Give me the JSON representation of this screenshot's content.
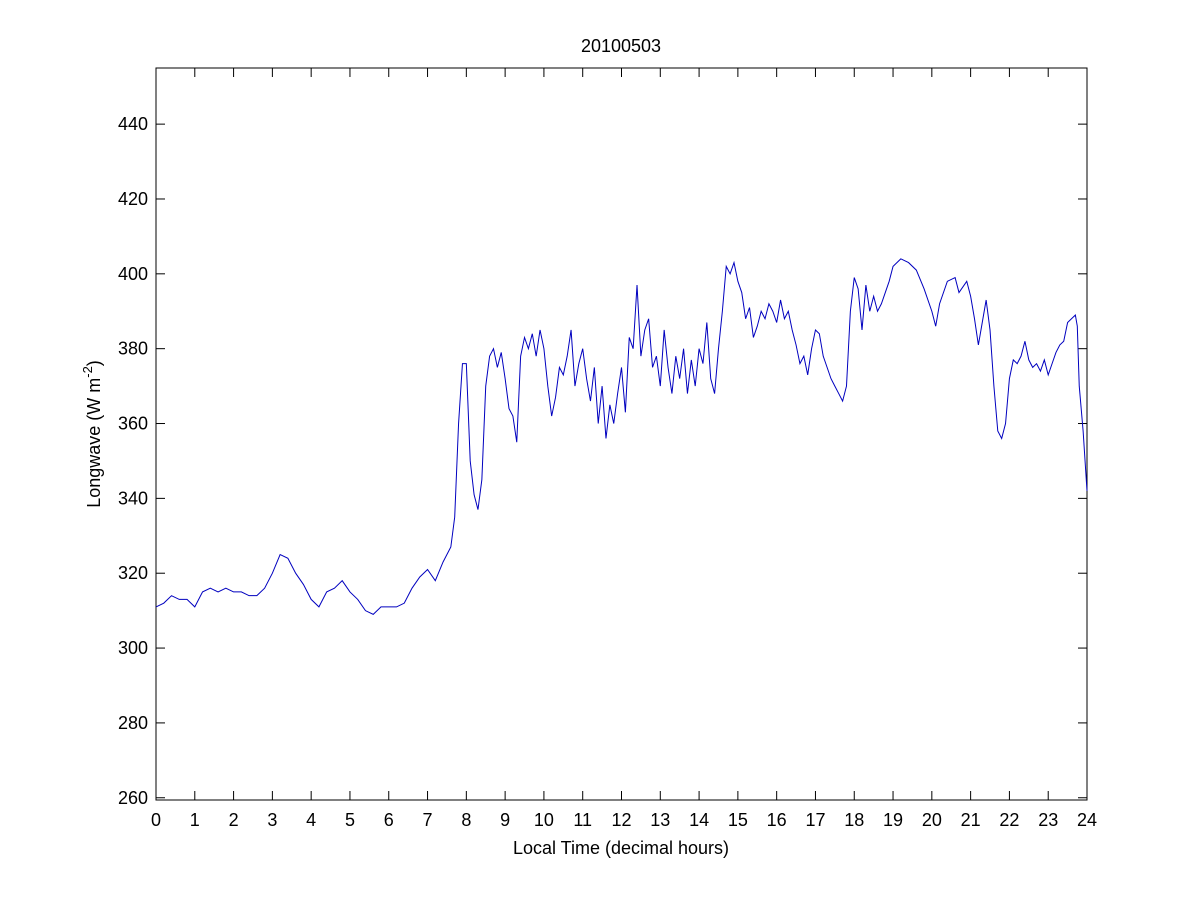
{
  "chart_data": {
    "type": "line",
    "title": "20100503",
    "xlabel": "Local Time (decimal hours)",
    "ylabel": {
      "text": "Longwave (W m",
      "superscript": "-2",
      "suffix": ")"
    },
    "color": "#0000bf",
    "xlim": [
      0,
      24
    ],
    "xticks": [
      0,
      1,
      2,
      3,
      4,
      5,
      6,
      7,
      8,
      9,
      10,
      11,
      12,
      13,
      14,
      15,
      16,
      17,
      18,
      19,
      20,
      21,
      22,
      23,
      24
    ],
    "ylim": [
      259.4,
      455
    ],
    "yticks": [
      260,
      280,
      300,
      320,
      340,
      360,
      380,
      400,
      420,
      440
    ],
    "grid": false,
    "x": [
      0,
      0.2,
      0.4,
      0.6,
      0.8,
      1.0,
      1.2,
      1.4,
      1.6,
      1.8,
      2.0,
      2.2,
      2.4,
      2.6,
      2.8,
      3.0,
      3.2,
      3.4,
      3.6,
      3.8,
      4.0,
      4.2,
      4.4,
      4.6,
      4.8,
      5.0,
      5.2,
      5.4,
      5.6,
      5.8,
      6.0,
      6.2,
      6.4,
      6.6,
      6.8,
      7.0,
      7.2,
      7.4,
      7.6,
      7.7,
      7.8,
      7.9,
      8.0,
      8.1,
      8.2,
      8.3,
      8.4,
      8.5,
      8.6,
      8.7,
      8.8,
      8.9,
      9.0,
      9.1,
      9.2,
      9.3,
      9.4,
      9.5,
      9.6,
      9.7,
      9.8,
      9.9,
      10.0,
      10.1,
      10.2,
      10.3,
      10.4,
      10.5,
      10.6,
      10.7,
      10.8,
      10.9,
      11.0,
      11.1,
      11.2,
      11.3,
      11.4,
      11.5,
      11.6,
      11.7,
      11.8,
      11.9,
      12.0,
      12.1,
      12.2,
      12.3,
      12.4,
      12.5,
      12.6,
      12.7,
      12.8,
      12.9,
      13.0,
      13.1,
      13.2,
      13.3,
      13.4,
      13.5,
      13.6,
      13.7,
      13.8,
      13.9,
      14.0,
      14.1,
      14.2,
      14.3,
      14.4,
      14.5,
      14.6,
      14.7,
      14.8,
      14.9,
      15.0,
      15.1,
      15.2,
      15.3,
      15.4,
      15.5,
      15.6,
      15.7,
      15.8,
      15.9,
      16.0,
      16.1,
      16.2,
      16.3,
      16.4,
      16.5,
      16.6,
      16.7,
      16.8,
      16.9,
      17.0,
      17.1,
      17.2,
      17.3,
      17.4,
      17.5,
      17.6,
      17.7,
      17.8,
      17.9,
      18.0,
      18.1,
      18.2,
      18.3,
      18.4,
      18.5,
      18.6,
      18.7,
      18.8,
      18.9,
      19.0,
      19.2,
      19.4,
      19.6,
      19.8,
      20.0,
      20.1,
      20.2,
      20.4,
      20.6,
      20.7,
      20.9,
      21.0,
      21.1,
      21.2,
      21.3,
      21.4,
      21.5,
      21.6,
      21.7,
      21.8,
      21.9,
      22.0,
      22.1,
      22.2,
      22.3,
      22.4,
      22.5,
      22.6,
      22.7,
      22.8,
      22.9,
      23.0,
      23.1,
      23.2,
      23.3,
      23.4,
      23.5,
      23.6,
      23.7,
      23.75,
      23.8,
      23.9,
      24.0
    ],
    "values": [
      311,
      312,
      314,
      313,
      313,
      311,
      315,
      316,
      315,
      316,
      315,
      315,
      314,
      314,
      316,
      320,
      325,
      324,
      320,
      317,
      313,
      311,
      315,
      316,
      318,
      315,
      313,
      310,
      309,
      311,
      311,
      311,
      312,
      316,
      319,
      321,
      318,
      323,
      327,
      335,
      360,
      376,
      376,
      350,
      341,
      337,
      345,
      370,
      378,
      380,
      375,
      379,
      372,
      364,
      362,
      355,
      378,
      383,
      380,
      384,
      378,
      385,
      380,
      370,
      362,
      367,
      375,
      373,
      378,
      385,
      370,
      376,
      380,
      372,
      366,
      375,
      360,
      370,
      356,
      365,
      360,
      368,
      375,
      363,
      383,
      380,
      397,
      378,
      385,
      388,
      375,
      378,
      370,
      385,
      375,
      368,
      378,
      372,
      380,
      368,
      377,
      370,
      380,
      376,
      387,
      372,
      368,
      380,
      390,
      402,
      400,
      403,
      398,
      395,
      388,
      391,
      383,
      386,
      390,
      388,
      392,
      390,
      387,
      393,
      388,
      390,
      385,
      381,
      376,
      378,
      373,
      380,
      385,
      384,
      378,
      375,
      372,
      370,
      368,
      366,
      370,
      390,
      399,
      396,
      385,
      397,
      390,
      394,
      390,
      392,
      395,
      398,
      402,
      404,
      403,
      401,
      396,
      390,
      386,
      392,
      398,
      399,
      395,
      398,
      394,
      388,
      381,
      387,
      393,
      385,
      370,
      358,
      356,
      360,
      372,
      377,
      376,
      378,
      382,
      377,
      375,
      376,
      374,
      377,
      373,
      376,
      379,
      381,
      382,
      387,
      388,
      389,
      386,
      370,
      358,
      342
    ]
  }
}
